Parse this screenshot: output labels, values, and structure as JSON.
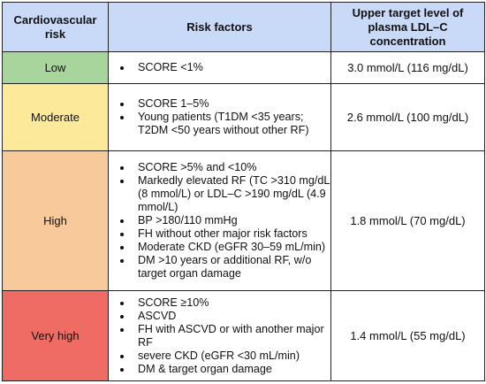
{
  "header": {
    "col1": "Cardiovascular risk",
    "col2": "Risk factors",
    "col3": "Upper target level of plasma LDL–C concentration"
  },
  "rows": [
    {
      "level": "Low",
      "color": "#a7d59b",
      "factors": [
        "SCORE <1%"
      ],
      "target": "3.0 mmol/L (116 mg/dL)"
    },
    {
      "level": "Moderate",
      "color": "#fde99a",
      "factors": [
        "SCORE 1–5%",
        "Young patients (T1DM <35 years; T2DM <50 years without other RF)"
      ],
      "target": "2.6 mmol/L (100 mg/dL)"
    },
    {
      "level": "High",
      "color": "#f8ca9b",
      "factors": [
        "SCORE >5% and <10%",
        "Markedly elevated RF (TC >310 mg/dL (8 mmol/L) or LDL–C >190 mg/dL (4.9 mmol/L)",
        "BP >180/110 mmHg",
        "FH without other major risk factors",
        "Moderate CKD (eGFR 30–59 mL/min)",
        "DM >10 years or additional RF, w/o target organ damage"
      ],
      "target": "1.8 mmol/L (70 mg/dL)"
    },
    {
      "level": "Very high",
      "color": "#ee6c63",
      "factors": [
        "SCORE ≥10%",
        "ASCVD",
        "FH with ASCVD or with another major RF",
        "severe CKD (eGFR <30 mL/min)",
        "DM & target organ damage"
      ],
      "target": "1.4 mmol/L (55 mg/dL)"
    }
  ]
}
